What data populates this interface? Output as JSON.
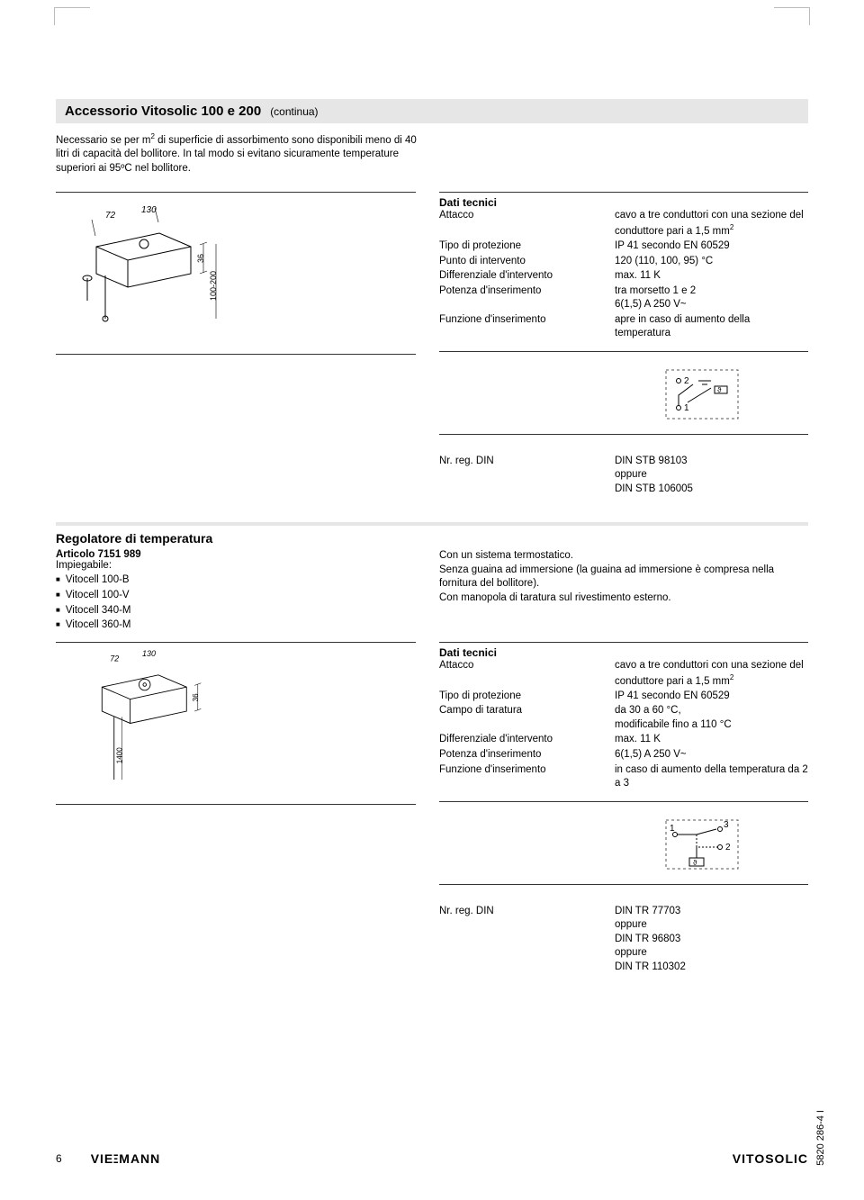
{
  "meta": {
    "page_number": "6",
    "brand": "VIESMANN",
    "product": "VITOSOLIC",
    "doc_id": "5820 286-4 I"
  },
  "section1": {
    "title": "Accessorio Vitosolic 100 e 200",
    "continuation": "(continua)",
    "intro_html": "Necessario se per m<sup>2</sup> di superficie di assorbimento sono disponibili meno di 40 litri di capacità del bollitore. In tal modo si evitano sicuramente temperature superiori ai 95ºC nel bollitore.",
    "tech_heading": "Dati tecnici",
    "specs": [
      {
        "label": "Attacco",
        "value_html": "cavo a tre conduttori con una sezione del conduttore pari a 1,5 mm<sup>2</sup>"
      },
      {
        "label": "Tipo di protezione",
        "value_html": "IP 41 secondo EN 60529"
      },
      {
        "label": "Punto di intervento",
        "value_html": "120 (110, 100, 95) °C"
      },
      {
        "label": "Differenziale d'intervento",
        "value_html": "max. 11 K"
      },
      {
        "label": "Potenza d'inserimento",
        "value_html": "tra morsetto 1 e 2<br>6(1,5) A 250 V~"
      },
      {
        "label": "Funzione d'inserimento",
        "value_html": "apre in caso di aumento della temperatura"
      }
    ],
    "din_label": "Nr. reg. DIN",
    "din_value": "DIN STB 98103<br>oppure<br>DIN STB 106005",
    "drawing_dims": {
      "d1": "72",
      "d2": "130",
      "d3": "36",
      "d4": "100-200"
    }
  },
  "section2": {
    "title": "Regolatore di temperatura",
    "article_label": "Articolo 7151 989",
    "impiegabile": "Impiegabile:",
    "models": [
      "Vitocell 100-B",
      "Vitocell 100-V",
      "Vitocell 340-M",
      "Vitocell 360-M"
    ],
    "right_desc": "Con un sistema termostatico.<br>Senza guaina ad immersione (la guaina ad immersione è compresa nella fornitura del bollitore).<br>Con manopola di taratura sul rivestimento esterno.",
    "tech_heading": "Dati tecnici",
    "specs": [
      {
        "label": "Attacco",
        "value_html": "cavo a tre conduttori con una sezione del conduttore pari a 1,5 mm<sup>2</sup>"
      },
      {
        "label": "Tipo di protezione",
        "value_html": "IP 41 secondo EN 60529"
      },
      {
        "label": "Campo di taratura",
        "value_html": "da 30 a 60 °C,<br>modificabile fino a 110 °C"
      },
      {
        "label": "Differenziale d'intervento",
        "value_html": "max. 11 K"
      },
      {
        "label": "Potenza d'inserimento",
        "value_html": "6(1,5) A 250 V~"
      },
      {
        "label": "Funzione d'inserimento",
        "value_html": "in caso di aumento della temperatura da 2 a 3"
      }
    ],
    "din_label": "Nr. reg. DIN",
    "din_value": "DIN TR 77703<br>oppure<br>DIN TR 96803<br>oppure<br>DIN TR 110302",
    "drawing_dims": {
      "d1": "72",
      "d2": "130",
      "d3": "36",
      "d4": "1400"
    }
  },
  "colors": {
    "section_bar": "#e6e6e6",
    "text": "#000000",
    "rule": "#333333",
    "crop": "#bbbbbb"
  }
}
